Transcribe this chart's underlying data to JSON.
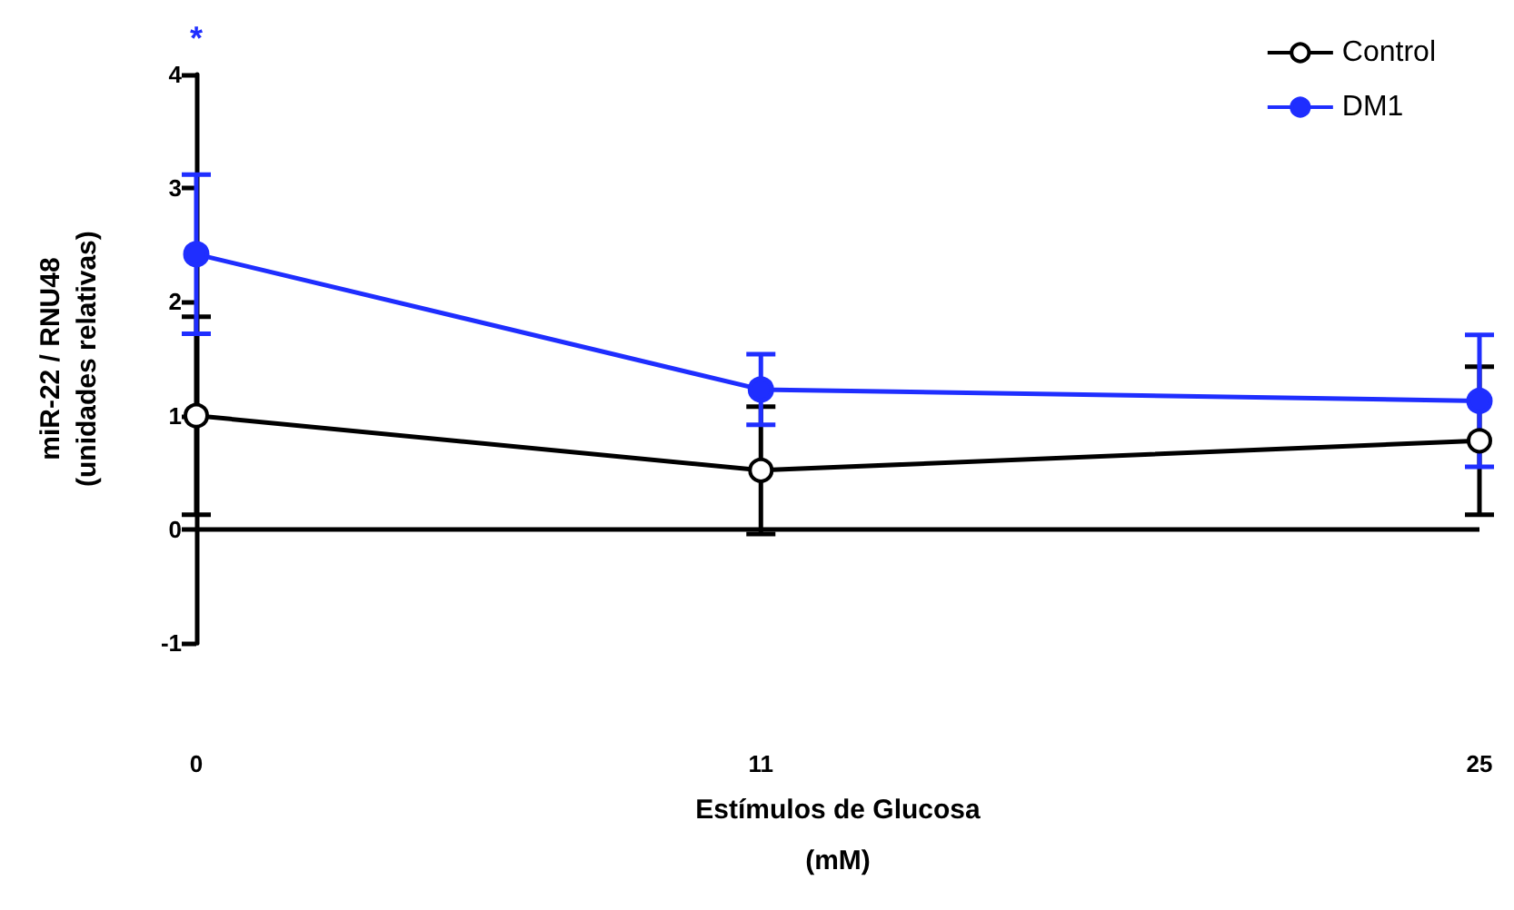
{
  "chart_data": {
    "type": "line",
    "xlabel": "Estímulos de Glucosa\n(mM)",
    "ylabel": "miR-22 / RNU48\n(unidades relativas)",
    "x": [
      0,
      11,
      25
    ],
    "xlim": [
      0,
      25
    ],
    "xticks": [
      0,
      11,
      25
    ],
    "ylim": [
      -1,
      4
    ],
    "yticks": [
      -1,
      0,
      1,
      2,
      3,
      4
    ],
    "series": [
      {
        "name": "Control",
        "color": "#000000",
        "values": [
          1.0,
          0.52,
          0.78
        ],
        "errors": [
          0.87,
          0.56,
          0.65
        ]
      },
      {
        "name": "DM1",
        "color": "#1f2eff",
        "values": [
          2.42,
          1.23,
          1.13
        ],
        "errors": [
          0.7,
          0.31,
          0.58
        ]
      }
    ],
    "ref_lines": [
      {
        "axis": "y",
        "value": 0,
        "color": "#000000"
      }
    ],
    "annotations": [
      "*"
    ],
    "marker": "circle",
    "legend": "top right",
    "grid": false
  }
}
